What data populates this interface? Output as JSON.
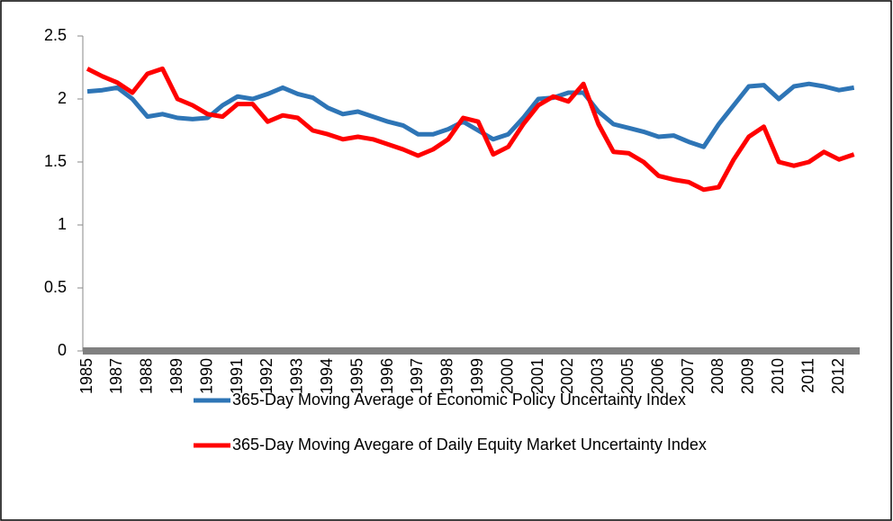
{
  "chart_data": {
    "type": "line",
    "categories": [
      "1985",
      null,
      "1987",
      null,
      "1988",
      null,
      "1989",
      null,
      "1990",
      null,
      "1991",
      null,
      "1992",
      null,
      "1993",
      null,
      "1994",
      null,
      "1995",
      null,
      "1996",
      null,
      "1997",
      null,
      "1998",
      null,
      "1999",
      null,
      "2000",
      null,
      "2001",
      null,
      "2002",
      null,
      "2003",
      null,
      "2005",
      null,
      "2006",
      null,
      "2007",
      null,
      "2008",
      null,
      "2009",
      null,
      "2010",
      null,
      "2011",
      null,
      "2012",
      null
    ],
    "series": [
      {
        "name": "365-Day Moving Average of Economic Policy Uncertainty Index",
        "color": "#2e75b6",
        "values": [
          2.06,
          2.07,
          2.09,
          2.0,
          1.86,
          1.88,
          1.85,
          1.84,
          1.85,
          1.95,
          2.02,
          2.0,
          2.04,
          2.09,
          2.04,
          2.01,
          1.93,
          1.88,
          1.9,
          1.86,
          1.82,
          1.79,
          1.72,
          1.72,
          1.76,
          1.82,
          1.75,
          1.68,
          1.72,
          1.85,
          2.0,
          2.01,
          2.05,
          2.05,
          1.9,
          1.8,
          1.77,
          1.74,
          1.7,
          1.71,
          1.66,
          1.62,
          1.8,
          1.95,
          2.1,
          2.11,
          2.0,
          2.1,
          2.12,
          2.1,
          2.07,
          2.09
        ]
      },
      {
        "name": "365-Day Moving Avegare of Daily Equity Market Uncertainty Index",
        "color": "#ff0000",
        "values": [
          2.24,
          2.18,
          2.13,
          2.05,
          2.2,
          2.24,
          2.0,
          1.95,
          1.88,
          1.86,
          1.96,
          1.96,
          1.82,
          1.87,
          1.85,
          1.75,
          1.72,
          1.68,
          1.7,
          1.68,
          1.64,
          1.6,
          1.55,
          1.6,
          1.68,
          1.85,
          1.82,
          1.56,
          1.62,
          1.8,
          1.95,
          2.02,
          1.98,
          2.12,
          1.8,
          1.58,
          1.57,
          1.5,
          1.39,
          1.36,
          1.34,
          1.28,
          1.3,
          1.52,
          1.7,
          1.78,
          1.5,
          1.47,
          1.5,
          1.58,
          1.52,
          1.56
        ]
      }
    ],
    "ylim": [
      0,
      2.5
    ],
    "yticks": [
      0,
      0.5,
      1,
      1.5,
      2,
      2.5
    ],
    "legend": "bottom"
  }
}
